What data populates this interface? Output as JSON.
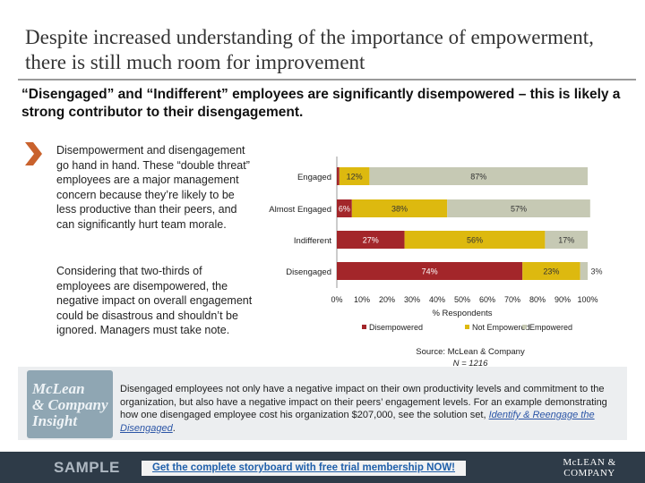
{
  "title": "Despite increased understanding of the importance of empowerment, there is still much room for improvement",
  "subtitle": "“Disengaged” and “Indifferent” employees are significantly disempowered – this is likely a strong contributor to their disengagement.",
  "paragraphs": [
    "Disempowerment and disengagement go hand in hand. These “double threat” employees are a major management concern because they’re likely to be less productive than their peers, and can significantly hurt team morale.",
    "Considering that two-thirds of employees are disempowered, the negative impact on overall engagement could be disastrous and shouldn’t be ignored. Managers must take note."
  ],
  "colors": {
    "disempowered": "#a3262a",
    "not_empowered": "#ddb90f",
    "empowered": "#c6c9b4"
  },
  "chart_data": {
    "type": "bar",
    "orientation": "horizontal-stacked-100",
    "categories": [
      "Engaged",
      "Almost Engaged",
      "Indifferent",
      "Disengaged"
    ],
    "series": [
      {
        "name": "Disempowered",
        "values": [
          1,
          6,
          27,
          74
        ]
      },
      {
        "name": "Not Empowered",
        "values": [
          12,
          38,
          56,
          23
        ]
      },
      {
        "name": "Empowered",
        "values": [
          87,
          57,
          17,
          3
        ]
      }
    ],
    "data_labels": [
      [
        "",
        "12%",
        "87%"
      ],
      [
        "6%",
        "38%",
        "57%"
      ],
      [
        "27%",
        "56%",
        "17%"
      ],
      [
        "74%",
        "23%",
        "3%"
      ]
    ],
    "xlim": [
      0,
      100
    ],
    "xticks": [
      "0%",
      "10%",
      "20%",
      "30%",
      "40%",
      "50%",
      "60%",
      "70%",
      "80%",
      "90%",
      "100%"
    ],
    "xlabel": "% Respondents",
    "legend": [
      "Disempowered",
      "Not Empowered",
      "Empowered"
    ]
  },
  "source": {
    "line1": "Source: McLean & Company",
    "line2": "N = 1216"
  },
  "insight": {
    "logo_lines": [
      "McLean",
      "& Company",
      "Insight"
    ],
    "text": "Disengaged employees not only have a negative impact on their own productivity levels and commitment to the organization, but also have a negative impact on their peers’ engagement levels. For an example demonstrating how one disengaged employee cost his organization $207,000, see the solution set, ",
    "link": "Identify & Reengage the Disengaged",
    "end": "."
  },
  "footer": {
    "sample": "SAMPLE",
    "cta": "Get the complete storyboard with free trial membership NOW!",
    "brand_line1": "McLEAN &",
    "brand_line2": "COMPANY"
  }
}
